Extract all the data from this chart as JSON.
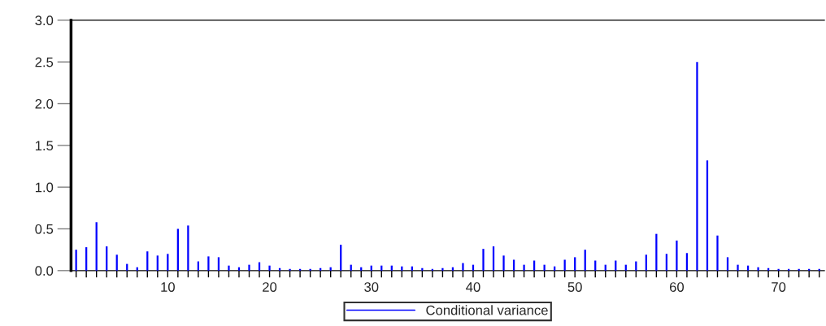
{
  "chart_data": {
    "type": "bar",
    "x": [
      1,
      2,
      3,
      4,
      5,
      6,
      7,
      8,
      9,
      10,
      11,
      12,
      13,
      14,
      15,
      16,
      17,
      18,
      19,
      20,
      21,
      22,
      23,
      24,
      25,
      26,
      27,
      28,
      29,
      30,
      31,
      32,
      33,
      34,
      35,
      36,
      37,
      38,
      39,
      40,
      41,
      42,
      43,
      44,
      45,
      46,
      47,
      48,
      49,
      50,
      51,
      52,
      53,
      54,
      55,
      56,
      57,
      58,
      59,
      60,
      61,
      62,
      63,
      64,
      65,
      66,
      67,
      68,
      69,
      70,
      71,
      72,
      73,
      74
    ],
    "series": [
      {
        "name": "Conditional variance",
        "color": "#0000ff",
        "values": [
          0.25,
          0.28,
          0.58,
          0.29,
          0.19,
          0.08,
          0.04,
          0.23,
          0.18,
          0.2,
          0.5,
          0.54,
          0.11,
          0.17,
          0.16,
          0.06,
          0.04,
          0.07,
          0.1,
          0.06,
          0.03,
          0.02,
          0.02,
          0.02,
          0.03,
          0.04,
          0.31,
          0.07,
          0.04,
          0.06,
          0.06,
          0.06,
          0.05,
          0.05,
          0.03,
          0.02,
          0.03,
          0.04,
          0.09,
          0.07,
          0.26,
          0.29,
          0.18,
          0.13,
          0.07,
          0.12,
          0.07,
          0.05,
          0.13,
          0.16,
          0.25,
          0.12,
          0.07,
          0.12,
          0.07,
          0.11,
          0.19,
          0.44,
          0.2,
          0.36,
          0.21,
          2.5,
          1.32,
          0.42,
          0.16,
          0.07,
          0.06,
          0.04,
          0.03,
          0.02,
          0.02,
          0.02,
          0.02,
          0.02
        ]
      }
    ],
    "xlim": [
      0.5,
      74.5
    ],
    "xticks": [
      {
        "value": 1,
        "label": null
      },
      {
        "value": 2,
        "label": null
      },
      {
        "value": 3,
        "label": null
      },
      {
        "value": 4,
        "label": null
      },
      {
        "value": 5,
        "label": null
      },
      {
        "value": 6,
        "label": null
      },
      {
        "value": 7,
        "label": null
      },
      {
        "value": 8,
        "label": null
      },
      {
        "value": 9,
        "label": null
      },
      {
        "value": 10,
        "label": "10"
      },
      {
        "value": 11,
        "label": null
      },
      {
        "value": 12,
        "label": null
      },
      {
        "value": 13,
        "label": null
      },
      {
        "value": 14,
        "label": null
      },
      {
        "value": 15,
        "label": null
      },
      {
        "value": 16,
        "label": null
      },
      {
        "value": 17,
        "label": null
      },
      {
        "value": 18,
        "label": null
      },
      {
        "value": 19,
        "label": null
      },
      {
        "value": 20,
        "label": "20"
      },
      {
        "value": 21,
        "label": null
      },
      {
        "value": 22,
        "label": null
      },
      {
        "value": 23,
        "label": null
      },
      {
        "value": 24,
        "label": null
      },
      {
        "value": 25,
        "label": null
      },
      {
        "value": 26,
        "label": null
      },
      {
        "value": 27,
        "label": null
      },
      {
        "value": 28,
        "label": null
      },
      {
        "value": 29,
        "label": null
      },
      {
        "value": 30,
        "label": "30"
      },
      {
        "value": 31,
        "label": null
      },
      {
        "value": 32,
        "label": null
      },
      {
        "value": 33,
        "label": null
      },
      {
        "value": 34,
        "label": null
      },
      {
        "value": 35,
        "label": null
      },
      {
        "value": 36,
        "label": null
      },
      {
        "value": 37,
        "label": null
      },
      {
        "value": 38,
        "label": null
      },
      {
        "value": 39,
        "label": null
      },
      {
        "value": 40,
        "label": "40"
      },
      {
        "value": 41,
        "label": null
      },
      {
        "value": 42,
        "label": null
      },
      {
        "value": 43,
        "label": null
      },
      {
        "value": 44,
        "label": null
      },
      {
        "value": 45,
        "label": null
      },
      {
        "value": 46,
        "label": null
      },
      {
        "value": 47,
        "label": null
      },
      {
        "value": 48,
        "label": null
      },
      {
        "value": 49,
        "label": null
      },
      {
        "value": 50,
        "label": "50"
      },
      {
        "value": 51,
        "label": null
      },
      {
        "value": 52,
        "label": null
      },
      {
        "value": 53,
        "label": null
      },
      {
        "value": 54,
        "label": null
      },
      {
        "value": 55,
        "label": null
      },
      {
        "value": 56,
        "label": null
      },
      {
        "value": 57,
        "label": null
      },
      {
        "value": 58,
        "label": null
      },
      {
        "value": 59,
        "label": null
      },
      {
        "value": 60,
        "label": "60"
      },
      {
        "value": 61,
        "label": null
      },
      {
        "value": 62,
        "label": null
      },
      {
        "value": 63,
        "label": null
      },
      {
        "value": 64,
        "label": null
      },
      {
        "value": 65,
        "label": null
      },
      {
        "value": 66,
        "label": null
      },
      {
        "value": 67,
        "label": null
      },
      {
        "value": 68,
        "label": null
      },
      {
        "value": 69,
        "label": null
      },
      {
        "value": 70,
        "label": "70"
      },
      {
        "value": 71,
        "label": null
      },
      {
        "value": 72,
        "label": null
      },
      {
        "value": 73,
        "label": null
      },
      {
        "value": 74,
        "label": null
      }
    ],
    "ylim": [
      0,
      3.0
    ],
    "yticks": [
      {
        "value": 0,
        "label": "0.0"
      },
      {
        "value": 0.5,
        "label": "0.5"
      },
      {
        "value": 1.0,
        "label": "1.0"
      },
      {
        "value": 1.5,
        "label": "1.5"
      },
      {
        "value": 2.0,
        "label": "2.0"
      },
      {
        "value": 2.5,
        "label": "2.5"
      },
      {
        "value": 3.0,
        "label": "3.0"
      }
    ],
    "grid": false,
    "legend": "bottom"
  }
}
